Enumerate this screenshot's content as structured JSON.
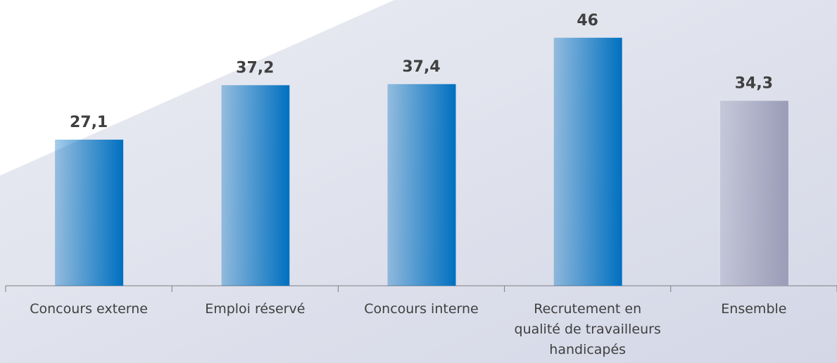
{
  "chart_data": {
    "type": "bar",
    "categories": [
      "Concours externe",
      "Emploi réservé",
      "Concours interne",
      "Recrutement en qualité de travailleurs handicapés",
      "Ensemble"
    ],
    "values": [
      27.1,
      37.2,
      37.4,
      46,
      34.3
    ],
    "value_labels": [
      "27,1",
      "37,2",
      "37,4",
      "46",
      "34,3"
    ],
    "colors": [
      "#0070c0",
      "#0070c0",
      "#0070c0",
      "#0070c0",
      "#9a9cb8"
    ],
    "ylim": [
      0,
      53
    ]
  }
}
